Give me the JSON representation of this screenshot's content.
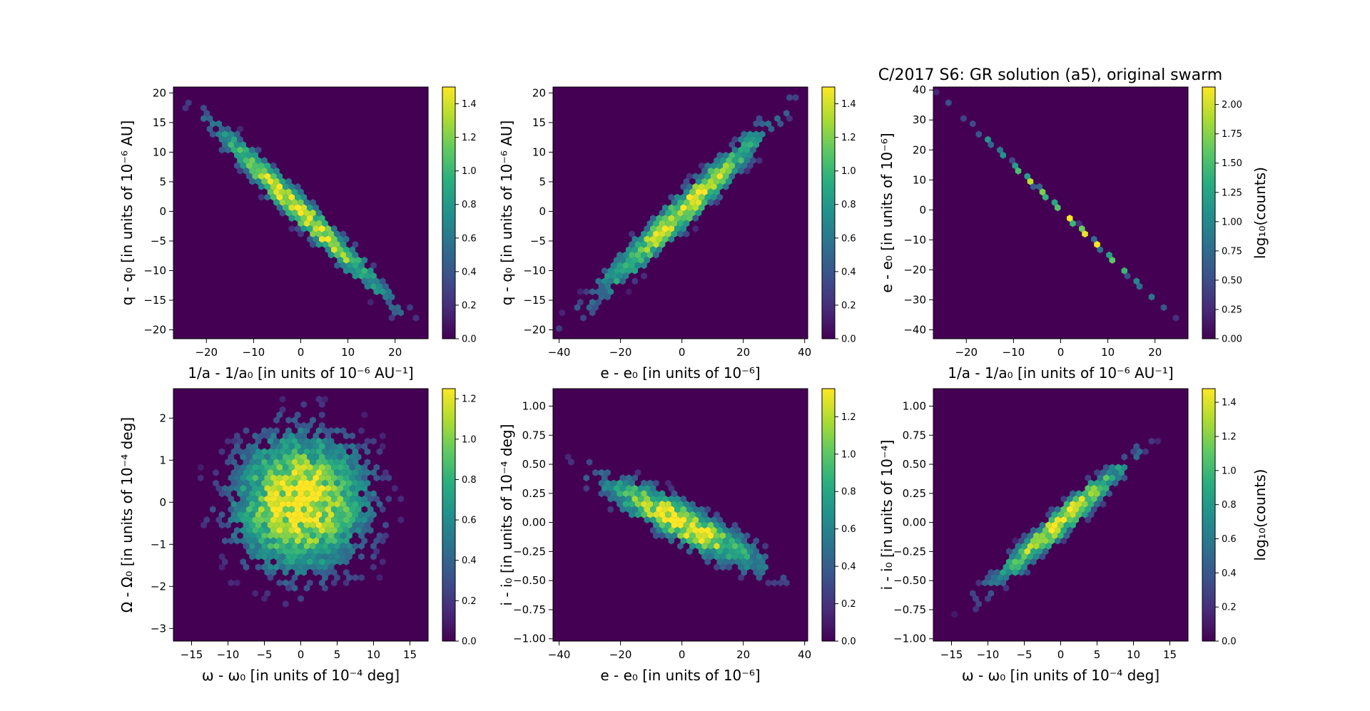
{
  "figure": {
    "title": "C/2017 S6: GR solution (a5),  original swarm",
    "colormap": [
      "#440154",
      "#472c7a",
      "#3b528b",
      "#2c728e",
      "#21918c",
      "#28ae80",
      "#5ec962",
      "#addc30",
      "#fde725"
    ],
    "background_color": "#440154"
  },
  "chart_data": [
    {
      "id": "p1",
      "type": "heatmap",
      "subtype": "hexbin",
      "xlabel": "1/a - 1/a₀ [in units of 10⁻⁶ AU⁻¹]",
      "ylabel": "q - q₀ [in units of 10⁻⁶ AU]",
      "xlim": [
        -27,
        27
      ],
      "ylim": [
        -21.5,
        21
      ],
      "xticks": [
        -20,
        -10,
        0,
        10,
        20
      ],
      "yticks": [
        -20,
        -15,
        -10,
        -5,
        0,
        5,
        10,
        15,
        20
      ],
      "colorbar": {
        "label": "",
        "range": [
          0,
          1.5
        ],
        "ticks": [
          0.0,
          0.2,
          0.4,
          0.6,
          0.8,
          1.0,
          1.2,
          1.4
        ]
      },
      "density": {
        "slope": -0.775,
        "sigma_x": 10,
        "sigma_perp": 1.6,
        "vmax": 1.5
      }
    },
    {
      "id": "p2",
      "type": "heatmap",
      "subtype": "hexbin",
      "xlabel": "e - e₀ [in units of 10⁻⁶]",
      "ylabel": "q - q₀ [in units of 10⁻⁶ AU]",
      "xlim": [
        -42,
        41
      ],
      "ylim": [
        -21.5,
        21
      ],
      "xticks": [
        -40,
        -20,
        0,
        20,
        40
      ],
      "yticks": [
        -20,
        -15,
        -10,
        -5,
        0,
        5,
        10,
        15,
        20
      ],
      "colorbar": {
        "label": "",
        "range": [
          0,
          1.5
        ],
        "ticks": [
          0.0,
          0.2,
          0.4,
          0.6,
          0.8,
          1.0,
          1.2,
          1.4
        ]
      },
      "density": {
        "slope": 0.5,
        "sigma_x": 15,
        "sigma_perp": 1.8,
        "vmax": 1.5
      }
    },
    {
      "id": "p3",
      "type": "heatmap",
      "subtype": "hexbin",
      "xlabel": "1/a - 1/a₀ [in units of 10⁻⁶ AU⁻¹]",
      "ylabel": "e - e₀ [in units of 10⁻⁶]",
      "xlim": [
        -27,
        27
      ],
      "ylim": [
        -43,
        41
      ],
      "xticks": [
        -20,
        -10,
        0,
        10,
        20
      ],
      "yticks": [
        -40,
        -30,
        -20,
        -10,
        0,
        10,
        20,
        30,
        40
      ],
      "colorbar": {
        "label": "log₁₀(counts)",
        "range": [
          0,
          2.15
        ],
        "ticks": [
          0.0,
          0.25,
          0.5,
          0.75,
          1.0,
          1.25,
          1.5,
          1.75,
          2.0
        ]
      },
      "density": {
        "slope": -1.5,
        "sigma_x": 10,
        "sigma_perp": 0.5,
        "vmax": 2.15
      }
    },
    {
      "id": "p4",
      "type": "heatmap",
      "subtype": "hexbin",
      "xlabel": "ω - ω₀ [in units of 10⁻⁴ deg]",
      "ylabel": "Ω - Ω₀ [in units of 10⁻⁴ deg]",
      "xlim": [
        -17.5,
        17.5
      ],
      "ylim": [
        -3.3,
        2.7
      ],
      "xticks": [
        -15,
        -10,
        -5,
        0,
        5,
        10,
        15
      ],
      "yticks": [
        -3,
        -2,
        -1,
        0,
        1,
        2
      ],
      "colorbar": {
        "label": "",
        "range": [
          0,
          1.25
        ],
        "ticks": [
          0.0,
          0.2,
          0.4,
          0.6,
          0.8,
          1.0,
          1.2
        ]
      },
      "density": {
        "slope": 0.0,
        "sigma_x": 5,
        "sigma_perp": 0.9,
        "vmax": 1.25
      }
    },
    {
      "id": "p5",
      "type": "heatmap",
      "subtype": "hexbin",
      "xlabel": "e - e₀ [in units of 10⁻⁶]",
      "ylabel": "i - i₀ [in units of 10⁻⁴ deg]",
      "xlim": [
        -42,
        41
      ],
      "ylim": [
        -1.02,
        1.15
      ],
      "xticks": [
        -40,
        -20,
        0,
        20,
        40
      ],
      "yticks": [
        -1.0,
        -0.75,
        -0.5,
        -0.25,
        0.0,
        0.25,
        0.5,
        0.75,
        1.0
      ],
      "colorbar": {
        "label": "",
        "range": [
          0,
          1.35
        ],
        "ticks": [
          0.0,
          0.2,
          0.4,
          0.6,
          0.8,
          1.0,
          1.2
        ]
      },
      "density": {
        "slope": -0.0135,
        "sigma_x": 14,
        "sigma_perp": 0.1,
        "vmax": 1.35
      }
    },
    {
      "id": "p6",
      "type": "heatmap",
      "subtype": "hexbin",
      "xlabel": "ω - ω₀ [in units of 10⁻⁴ deg]",
      "ylabel": "i - i₀ [in units of 10⁻⁴]",
      "xlim": [
        -17.5,
        17.5
      ],
      "ylim": [
        -1.02,
        1.15
      ],
      "xticks": [
        -15,
        -10,
        -5,
        0,
        5,
        10,
        15
      ],
      "yticks": [
        -1.0,
        -0.75,
        -0.5,
        -0.25,
        0.0,
        0.25,
        0.5,
        0.75,
        1.0
      ],
      "colorbar": {
        "label": "log₁₀(counts)",
        "range": [
          0,
          1.48
        ],
        "ticks": [
          0.0,
          0.2,
          0.4,
          0.6,
          0.8,
          1.0,
          1.2,
          1.4
        ]
      },
      "density": {
        "slope": 0.0555,
        "sigma_x": 5,
        "sigma_perp": 0.075,
        "vmax": 1.48
      }
    }
  ]
}
